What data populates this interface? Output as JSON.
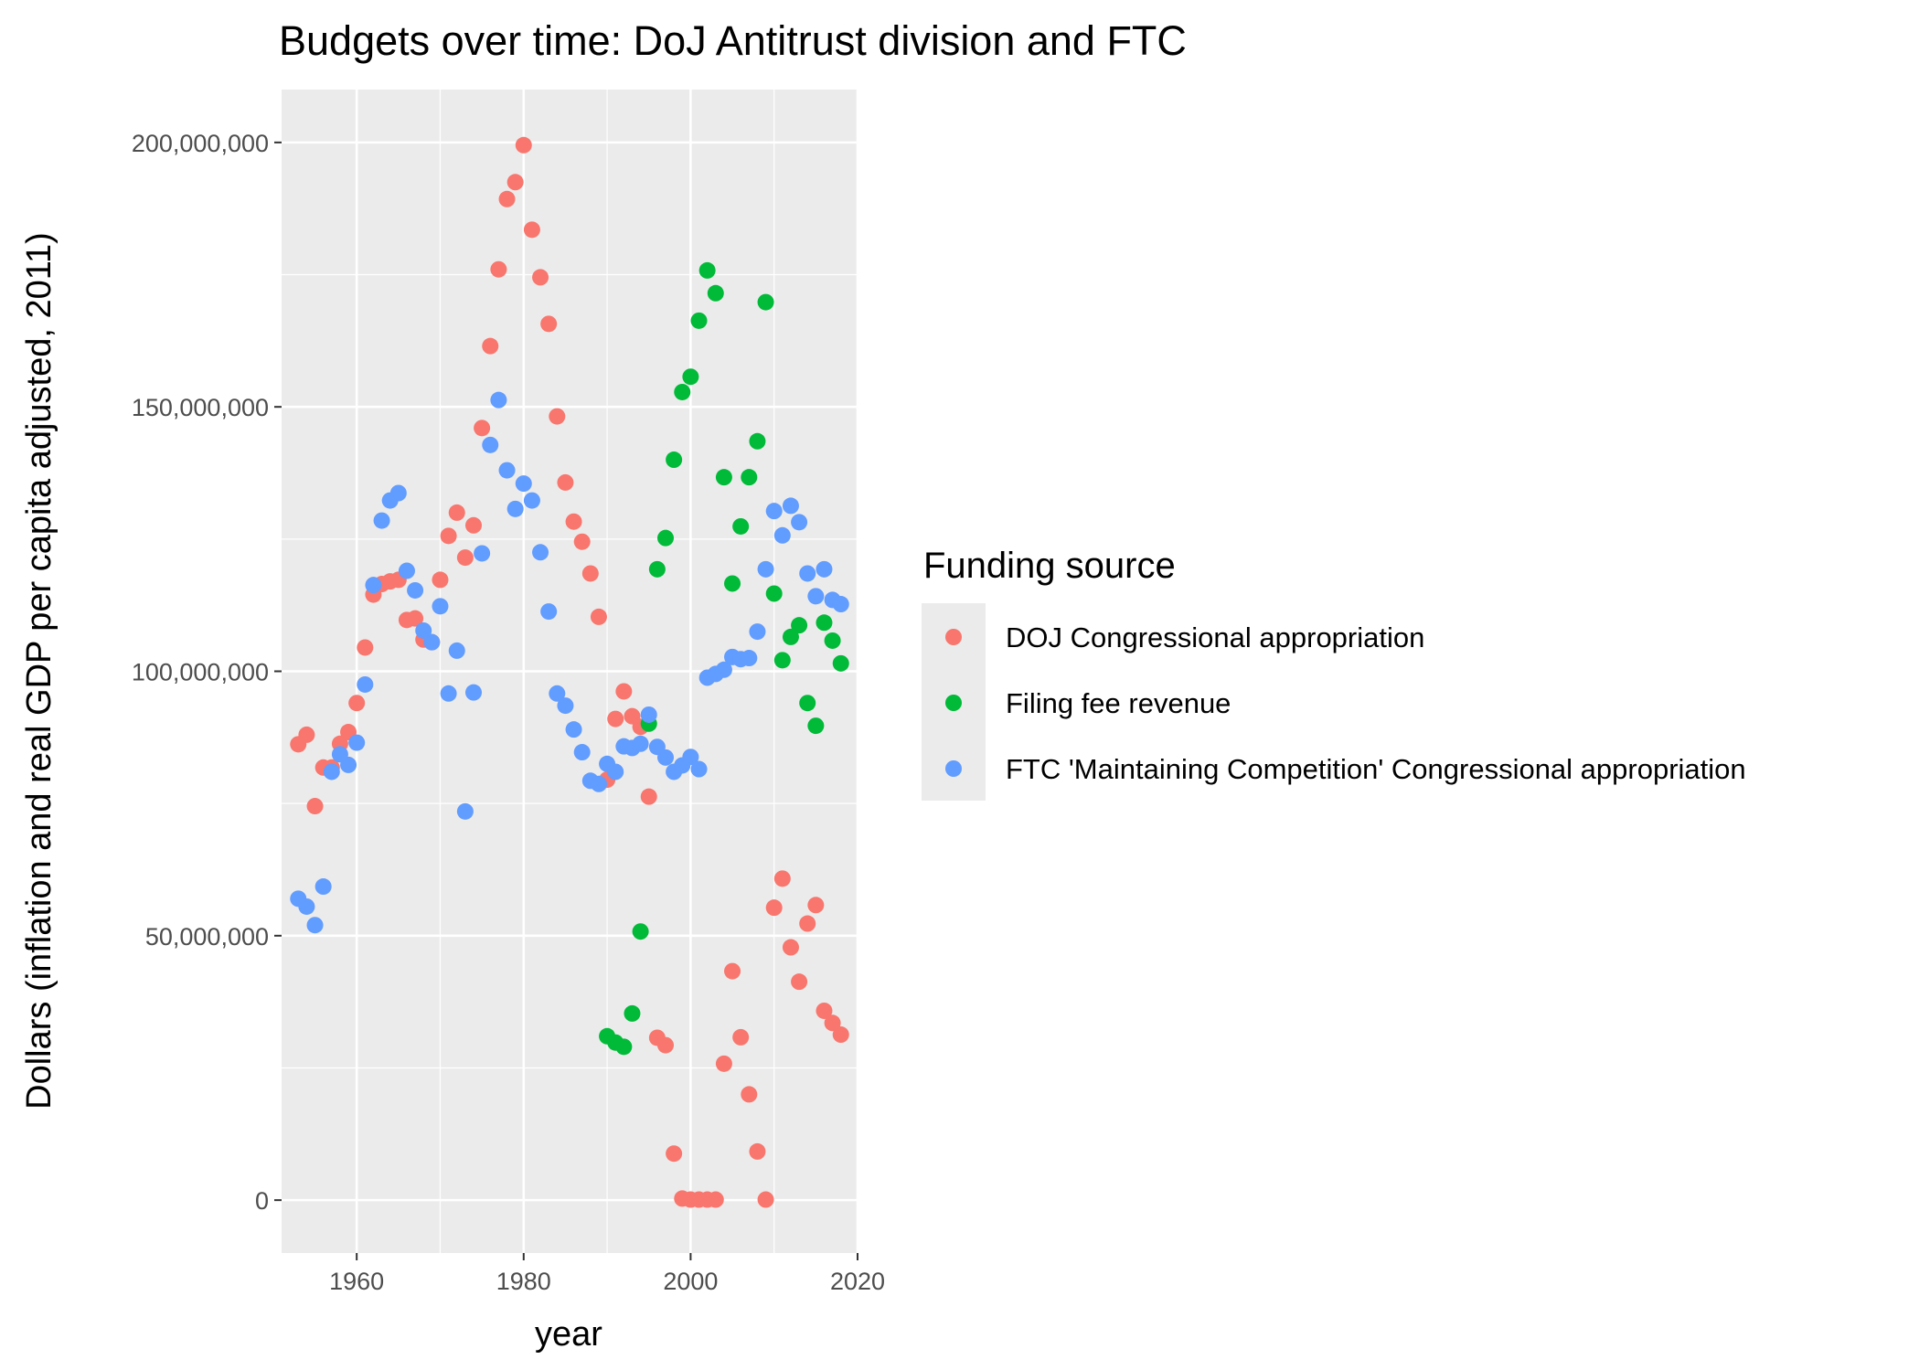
{
  "chart_data": {
    "type": "scatter",
    "title": "Budgets over time: DoJ Antitrust division and FTC",
    "xlabel": "year",
    "ylabel": "Dollars (inflation and real GDP per capita adjusted, 2011)",
    "xlim": [
      1951,
      2020
    ],
    "ylim": [
      -10000000,
      210000000
    ],
    "x_ticks": [
      1960,
      1980,
      2000,
      2020
    ],
    "y_ticks": [
      0,
      50000000,
      100000000,
      150000000,
      200000000
    ],
    "x_tick_labels": [
      "1960",
      "1980",
      "2000",
      "2020"
    ],
    "y_tick_labels": [
      "0",
      "50,000,000",
      "100,000,000",
      "150,000,000",
      "200,000,000"
    ],
    "grid": true,
    "legend": {
      "title": "Funding source",
      "placement": "right"
    },
    "series": [
      {
        "name": "DOJ Congressional appropriation",
        "color": "#F8766D",
        "points": [
          [
            1953,
            86200000
          ],
          [
            1954,
            88000000
          ],
          [
            1955,
            74500000
          ],
          [
            1956,
            81800000
          ],
          [
            1957,
            81800000
          ],
          [
            1958,
            86300000
          ],
          [
            1959,
            88500000
          ],
          [
            1960,
            94000000
          ],
          [
            1961,
            104500000
          ],
          [
            1962,
            114500000
          ],
          [
            1963,
            116500000
          ],
          [
            1964,
            117000000
          ],
          [
            1965,
            117300000
          ],
          [
            1966,
            109700000
          ],
          [
            1967,
            110000000
          ],
          [
            1968,
            106000000
          ],
          [
            1969,
            105500000
          ],
          [
            1970,
            117300000
          ],
          [
            1971,
            125600000
          ],
          [
            1972,
            130000000
          ],
          [
            1973,
            121500000
          ],
          [
            1974,
            127600000
          ],
          [
            1975,
            146000000
          ],
          [
            1976,
            161500000
          ],
          [
            1977,
            176000000
          ],
          [
            1978,
            189300000
          ],
          [
            1979,
            192500000
          ],
          [
            1980,
            199500000
          ],
          [
            1981,
            183500000
          ],
          [
            1982,
            174500000
          ],
          [
            1983,
            165700000
          ],
          [
            1984,
            148200000
          ],
          [
            1985,
            135700000
          ],
          [
            1986,
            128300000
          ],
          [
            1987,
            124500000
          ],
          [
            1988,
            118500000
          ],
          [
            1989,
            110300000
          ],
          [
            1990,
            79500000
          ],
          [
            1991,
            91000000
          ],
          [
            1992,
            96200000
          ],
          [
            1993,
            91500000
          ],
          [
            1994,
            89500000
          ],
          [
            1995,
            76300000
          ],
          [
            1996,
            30700000
          ],
          [
            1997,
            29300000
          ],
          [
            1998,
            8800000
          ],
          [
            1999,
            300000
          ],
          [
            2000,
            100000
          ],
          [
            2001,
            100000
          ],
          [
            2002,
            100000
          ],
          [
            2003,
            100000
          ],
          [
            2004,
            25800000
          ],
          [
            2005,
            43300000
          ],
          [
            2006,
            30800000
          ],
          [
            2007,
            20000000
          ],
          [
            2008,
            9200000
          ],
          [
            2009,
            100000
          ],
          [
            2010,
            55300000
          ],
          [
            2011,
            60800000
          ],
          [
            2012,
            47800000
          ],
          [
            2013,
            41300000
          ],
          [
            2014,
            52300000
          ],
          [
            2015,
            55800000
          ],
          [
            2016,
            35800000
          ],
          [
            2017,
            33500000
          ],
          [
            2018,
            31300000
          ]
        ]
      },
      {
        "name": "Filing fee revenue",
        "color": "#00BA38",
        "points": [
          [
            1990,
            31000000
          ],
          [
            1991,
            29800000
          ],
          [
            1992,
            29000000
          ],
          [
            1993,
            35300000
          ],
          [
            1994,
            50800000
          ],
          [
            1995,
            90100000
          ],
          [
            1996,
            119300000
          ],
          [
            1997,
            125200000
          ],
          [
            1998,
            140000000
          ],
          [
            1999,
            152800000
          ],
          [
            2000,
            155700000
          ],
          [
            2001,
            166300000
          ],
          [
            2002,
            175800000
          ],
          [
            2003,
            171500000
          ],
          [
            2004,
            136700000
          ],
          [
            2005,
            116600000
          ],
          [
            2006,
            127400000
          ],
          [
            2007,
            136700000
          ],
          [
            2008,
            143500000
          ],
          [
            2009,
            169800000
          ],
          [
            2010,
            114700000
          ],
          [
            2011,
            102100000
          ],
          [
            2012,
            106500000
          ],
          [
            2013,
            108700000
          ],
          [
            2014,
            94000000
          ],
          [
            2015,
            89700000
          ],
          [
            2016,
            109200000
          ],
          [
            2017,
            105800000
          ],
          [
            2018,
            101500000
          ]
        ]
      },
      {
        "name": "FTC 'Maintaining Competition' Congressional appropriation",
        "color": "#619CFF",
        "points": [
          [
            1953,
            57000000
          ],
          [
            1954,
            55500000
          ],
          [
            1955,
            52000000
          ],
          [
            1956,
            59300000
          ],
          [
            1957,
            81000000
          ],
          [
            1958,
            84300000
          ],
          [
            1959,
            82300000
          ],
          [
            1960,
            86500000
          ],
          [
            1961,
            97500000
          ],
          [
            1962,
            116300000
          ],
          [
            1963,
            128500000
          ],
          [
            1964,
            132300000
          ],
          [
            1965,
            133700000
          ],
          [
            1966,
            119000000
          ],
          [
            1967,
            115300000
          ],
          [
            1968,
            107700000
          ],
          [
            1969,
            105500000
          ],
          [
            1970,
            112300000
          ],
          [
            1971,
            95800000
          ],
          [
            1972,
            103900000
          ],
          [
            1973,
            73500000
          ],
          [
            1974,
            96000000
          ],
          [
            1975,
            122300000
          ],
          [
            1976,
            142800000
          ],
          [
            1977,
            151300000
          ],
          [
            1978,
            138000000
          ],
          [
            1979,
            130700000
          ],
          [
            1980,
            135500000
          ],
          [
            1981,
            132300000
          ],
          [
            1982,
            122500000
          ],
          [
            1983,
            111300000
          ],
          [
            1984,
            95800000
          ],
          [
            1985,
            93500000
          ],
          [
            1986,
            89000000
          ],
          [
            1987,
            84700000
          ],
          [
            1988,
            79300000
          ],
          [
            1989,
            78700000
          ],
          [
            1990,
            82500000
          ],
          [
            1991,
            81000000
          ],
          [
            1992,
            85800000
          ],
          [
            1993,
            85500000
          ],
          [
            1994,
            86300000
          ],
          [
            1995,
            91800000
          ],
          [
            1996,
            85700000
          ],
          [
            1997,
            83700000
          ],
          [
            1998,
            81000000
          ],
          [
            1999,
            82200000
          ],
          [
            2000,
            83800000
          ],
          [
            2001,
            81500000
          ],
          [
            2002,
            98800000
          ],
          [
            2003,
            99500000
          ],
          [
            2004,
            100300000
          ],
          [
            2005,
            102700000
          ],
          [
            2006,
            102300000
          ],
          [
            2007,
            102500000
          ],
          [
            2008,
            107500000
          ],
          [
            2009,
            119300000
          ],
          [
            2010,
            130300000
          ],
          [
            2011,
            125700000
          ],
          [
            2012,
            131300000
          ],
          [
            2013,
            128200000
          ],
          [
            2014,
            118500000
          ],
          [
            2015,
            114200000
          ],
          [
            2016,
            119300000
          ],
          [
            2017,
            113500000
          ],
          [
            2018,
            112700000
          ]
        ]
      }
    ]
  }
}
